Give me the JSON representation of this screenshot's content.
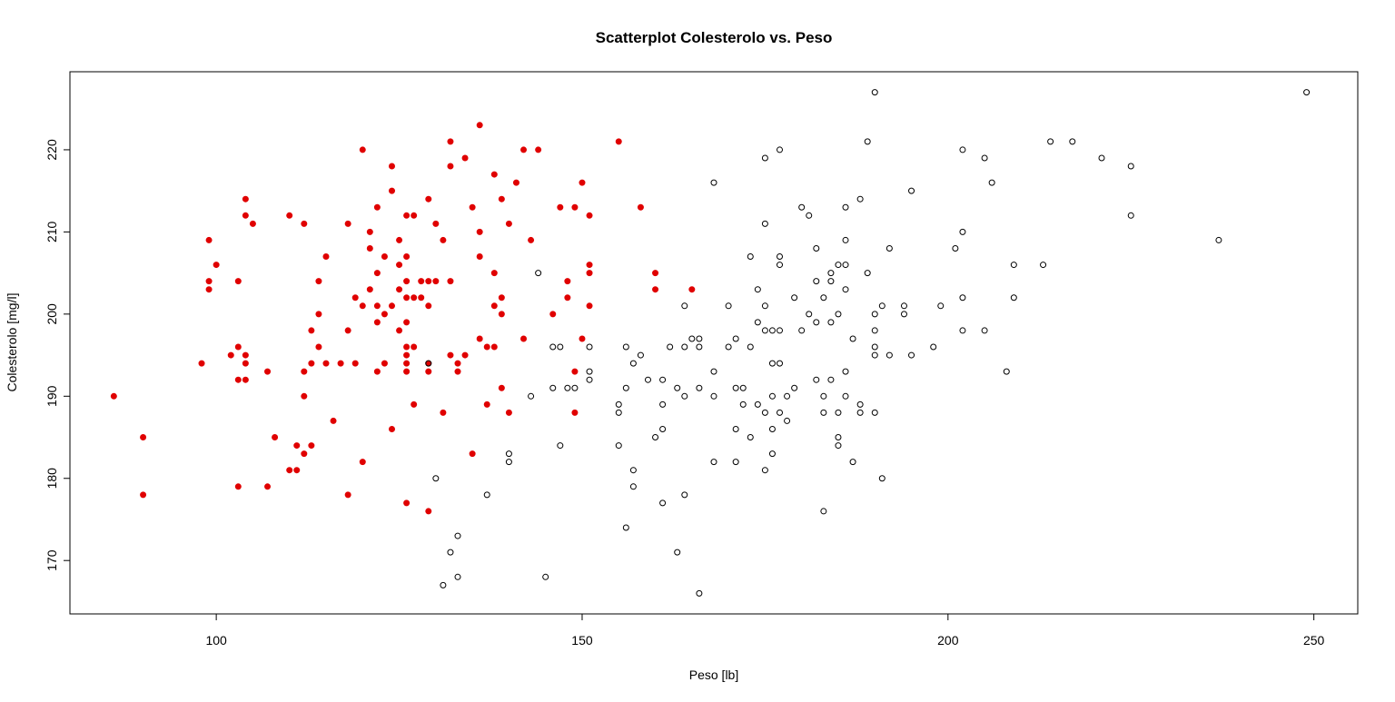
{
  "chart_data": {
    "type": "scatter",
    "title": "Scatterplot Colesterolo vs. Peso",
    "xlabel": "Peso [lb]",
    "ylabel": "Colesterolo [mg/l]",
    "xlim": [
      80,
      256
    ],
    "ylim": [
      163.5,
      229.5
    ],
    "x_ticks": [
      100,
      150,
      200,
      250
    ],
    "y_ticks": [
      170,
      180,
      190,
      200,
      210,
      220
    ],
    "grid": false,
    "legend": "none",
    "series": [
      {
        "style": "filled",
        "color": "#e00000",
        "points": [
          [
            86,
            190
          ],
          [
            90,
            185
          ],
          [
            90,
            178
          ],
          [
            98,
            194
          ],
          [
            99,
            209
          ],
          [
            99,
            204
          ],
          [
            99,
            203
          ],
          [
            100,
            206
          ],
          [
            102,
            195
          ],
          [
            103,
            196
          ],
          [
            103,
            192
          ],
          [
            103,
            204
          ],
          [
            103,
            179
          ],
          [
            104,
            214
          ],
          [
            104,
            212
          ],
          [
            104,
            195
          ],
          [
            104,
            194
          ],
          [
            104,
            192
          ],
          [
            105,
            211
          ],
          [
            107,
            193
          ],
          [
            107,
            179
          ],
          [
            108,
            185
          ],
          [
            110,
            212
          ],
          [
            110,
            181
          ],
          [
            111,
            184
          ],
          [
            111,
            181
          ],
          [
            112,
            211
          ],
          [
            112,
            193
          ],
          [
            112,
            190
          ],
          [
            112,
            183
          ],
          [
            113,
            198
          ],
          [
            113,
            194
          ],
          [
            113,
            184
          ],
          [
            114,
            204
          ],
          [
            114,
            200
          ],
          [
            114,
            196
          ],
          [
            115,
            207
          ],
          [
            115,
            194
          ],
          [
            116,
            187
          ],
          [
            117,
            194
          ],
          [
            118,
            211
          ],
          [
            118,
            198
          ],
          [
            118,
            178
          ],
          [
            119,
            202
          ],
          [
            119,
            194
          ],
          [
            120,
            220
          ],
          [
            120,
            201
          ],
          [
            120,
            182
          ],
          [
            121,
            210
          ],
          [
            121,
            208
          ],
          [
            121,
            203
          ],
          [
            122,
            213
          ],
          [
            122,
            205
          ],
          [
            122,
            201
          ],
          [
            122,
            199
          ],
          [
            122,
            193
          ],
          [
            123,
            207
          ],
          [
            123,
            200
          ],
          [
            123,
            194
          ],
          [
            124,
            218
          ],
          [
            124,
            215
          ],
          [
            124,
            201
          ],
          [
            124,
            186
          ],
          [
            125,
            209
          ],
          [
            125,
            206
          ],
          [
            125,
            203
          ],
          [
            125,
            198
          ],
          [
            126,
            212
          ],
          [
            126,
            207
          ],
          [
            126,
            204
          ],
          [
            126,
            202
          ],
          [
            126,
            199
          ],
          [
            126,
            196
          ],
          [
            126,
            195
          ],
          [
            126,
            194
          ],
          [
            126,
            193
          ],
          [
            126,
            177
          ],
          [
            127,
            212
          ],
          [
            127,
            202
          ],
          [
            127,
            196
          ],
          [
            127,
            189
          ],
          [
            128,
            204
          ],
          [
            128,
            202
          ],
          [
            129,
            214
          ],
          [
            129,
            204
          ],
          [
            129,
            201
          ],
          [
            129,
            194
          ],
          [
            129,
            193
          ],
          [
            129,
            176
          ],
          [
            130,
            211
          ],
          [
            130,
            204
          ],
          [
            131,
            209
          ],
          [
            131,
            188
          ],
          [
            132,
            221
          ],
          [
            132,
            218
          ],
          [
            132,
            204
          ],
          [
            132,
            195
          ],
          [
            133,
            194
          ],
          [
            133,
            193
          ],
          [
            134,
            219
          ],
          [
            134,
            195
          ],
          [
            135,
            213
          ],
          [
            135,
            183
          ],
          [
            136,
            223
          ],
          [
            136,
            210
          ],
          [
            136,
            207
          ],
          [
            136,
            197
          ],
          [
            137,
            196
          ],
          [
            137,
            189
          ],
          [
            138,
            217
          ],
          [
            138,
            205
          ],
          [
            138,
            201
          ],
          [
            138,
            196
          ],
          [
            139,
            214
          ],
          [
            139,
            202
          ],
          [
            139,
            200
          ],
          [
            139,
            191
          ],
          [
            140,
            211
          ],
          [
            140,
            188
          ],
          [
            141,
            216
          ],
          [
            142,
            220
          ],
          [
            142,
            197
          ],
          [
            143,
            209
          ],
          [
            144,
            220
          ],
          [
            146,
            200
          ],
          [
            147,
            213
          ],
          [
            148,
            204
          ],
          [
            148,
            202
          ],
          [
            149,
            213
          ],
          [
            149,
            193
          ],
          [
            149,
            188
          ],
          [
            150,
            216
          ],
          [
            150,
            197
          ],
          [
            151,
            212
          ],
          [
            151,
            206
          ],
          [
            151,
            205
          ],
          [
            151,
            201
          ],
          [
            155,
            221
          ],
          [
            158,
            213
          ],
          [
            160,
            205
          ],
          [
            160,
            203
          ],
          [
            165,
            203
          ]
        ]
      },
      {
        "style": "open",
        "color": "#000000",
        "points": [
          [
            129,
            194
          ],
          [
            130,
            180
          ],
          [
            131,
            167
          ],
          [
            132,
            171
          ],
          [
            133,
            173
          ],
          [
            133,
            168
          ],
          [
            137,
            178
          ],
          [
            140,
            183
          ],
          [
            140,
            182
          ],
          [
            143,
            190
          ],
          [
            144,
            205
          ],
          [
            145,
            168
          ],
          [
            146,
            196
          ],
          [
            146,
            191
          ],
          [
            147,
            196
          ],
          [
            147,
            184
          ],
          [
            148,
            191
          ],
          [
            149,
            191
          ],
          [
            151,
            196
          ],
          [
            151,
            193
          ],
          [
            151,
            192
          ],
          [
            155,
            189
          ],
          [
            155,
            188
          ],
          [
            155,
            184
          ],
          [
            156,
            196
          ],
          [
            156,
            191
          ],
          [
            156,
            174
          ],
          [
            157,
            194
          ],
          [
            157,
            181
          ],
          [
            157,
            179
          ],
          [
            158,
            195
          ],
          [
            159,
            192
          ],
          [
            160,
            185
          ],
          [
            161,
            192
          ],
          [
            161,
            189
          ],
          [
            161,
            186
          ],
          [
            161,
            177
          ],
          [
            162,
            196
          ],
          [
            163,
            191
          ],
          [
            163,
            171
          ],
          [
            164,
            201
          ],
          [
            164,
            196
          ],
          [
            164,
            190
          ],
          [
            164,
            178
          ],
          [
            165,
            197
          ],
          [
            166,
            197
          ],
          [
            166,
            196
          ],
          [
            166,
            191
          ],
          [
            166,
            166
          ],
          [
            168,
            216
          ],
          [
            168,
            193
          ],
          [
            168,
            190
          ],
          [
            168,
            182
          ],
          [
            170,
            201
          ],
          [
            170,
            196
          ],
          [
            171,
            197
          ],
          [
            171,
            191
          ],
          [
            171,
            186
          ],
          [
            171,
            182
          ],
          [
            172,
            191
          ],
          [
            172,
            189
          ],
          [
            173,
            207
          ],
          [
            173,
            196
          ],
          [
            173,
            185
          ],
          [
            174,
            203
          ],
          [
            174,
            199
          ],
          [
            174,
            189
          ],
          [
            175,
            219
          ],
          [
            175,
            211
          ],
          [
            175,
            201
          ],
          [
            175,
            198
          ],
          [
            175,
            188
          ],
          [
            175,
            181
          ],
          [
            176,
            198
          ],
          [
            176,
            194
          ],
          [
            176,
            190
          ],
          [
            176,
            186
          ],
          [
            176,
            183
          ],
          [
            177,
            220
          ],
          [
            177,
            207
          ],
          [
            177,
            206
          ],
          [
            177,
            198
          ],
          [
            177,
            194
          ],
          [
            177,
            188
          ],
          [
            178,
            190
          ],
          [
            178,
            187
          ],
          [
            179,
            202
          ],
          [
            179,
            191
          ],
          [
            180,
            213
          ],
          [
            180,
            198
          ],
          [
            181,
            212
          ],
          [
            181,
            200
          ],
          [
            182,
            208
          ],
          [
            182,
            204
          ],
          [
            182,
            199
          ],
          [
            182,
            192
          ],
          [
            183,
            202
          ],
          [
            183,
            190
          ],
          [
            183,
            188
          ],
          [
            183,
            176
          ],
          [
            184,
            205
          ],
          [
            184,
            204
          ],
          [
            184,
            199
          ],
          [
            184,
            192
          ],
          [
            185,
            206
          ],
          [
            185,
            200
          ],
          [
            185,
            188
          ],
          [
            185,
            185
          ],
          [
            185,
            184
          ],
          [
            186,
            213
          ],
          [
            186,
            209
          ],
          [
            186,
            206
          ],
          [
            186,
            203
          ],
          [
            186,
            193
          ],
          [
            186,
            190
          ],
          [
            187,
            197
          ],
          [
            187,
            182
          ],
          [
            188,
            214
          ],
          [
            188,
            189
          ],
          [
            188,
            188
          ],
          [
            189,
            221
          ],
          [
            189,
            205
          ],
          [
            190,
            227
          ],
          [
            190,
            200
          ],
          [
            190,
            198
          ],
          [
            190,
            196
          ],
          [
            190,
            195
          ],
          [
            190,
            188
          ],
          [
            191,
            201
          ],
          [
            191,
            180
          ],
          [
            192,
            208
          ],
          [
            192,
            195
          ],
          [
            194,
            201
          ],
          [
            194,
            200
          ],
          [
            195,
            215
          ],
          [
            195,
            195
          ],
          [
            198,
            196
          ],
          [
            199,
            201
          ],
          [
            201,
            208
          ],
          [
            202,
            220
          ],
          [
            202,
            210
          ],
          [
            202,
            202
          ],
          [
            202,
            198
          ],
          [
            205,
            219
          ],
          [
            205,
            198
          ],
          [
            206,
            216
          ],
          [
            208,
            193
          ],
          [
            209,
            206
          ],
          [
            209,
            202
          ],
          [
            213,
            206
          ],
          [
            214,
            221
          ],
          [
            217,
            221
          ],
          [
            221,
            219
          ],
          [
            225,
            218
          ],
          [
            225,
            212
          ],
          [
            237,
            209
          ],
          [
            249,
            227
          ]
        ]
      }
    ]
  }
}
